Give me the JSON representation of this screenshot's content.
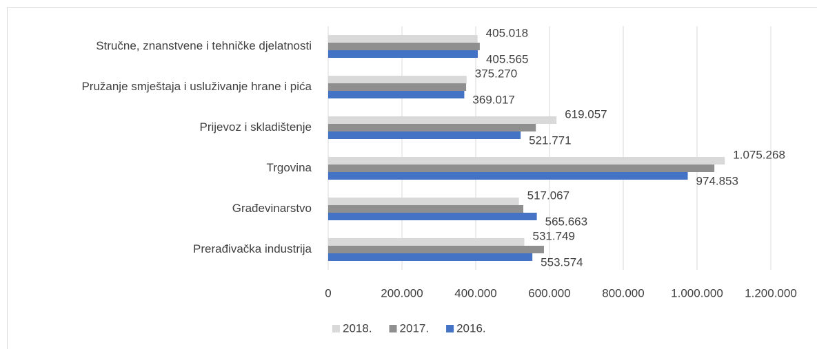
{
  "chart_data": {
    "type": "barh",
    "categories": [
      "Stručne, znanstvene i tehničke djelatnosti",
      "Pružanje smještaja i usluživanje hrane i pića",
      "Prijevoz i  skladištenje",
      "Trgovina",
      "Građevinarstvo",
      "Prerađivačka industrija"
    ],
    "series": [
      {
        "name": "2018.",
        "color": "#d9d9d9",
        "label_color": "#262626",
        "values": [
          405018,
          375270,
          619057,
          1075268,
          517067,
          531749
        ],
        "value_labels": [
          "405.018",
          "375.270",
          "619.057",
          "1.075.268",
          "517.067",
          "531.749"
        ]
      },
      {
        "name": "2017.",
        "color": "#8f8f8f",
        "values": [
          411000,
          374000,
          563000,
          1047000,
          529000,
          585000
        ]
      },
      {
        "name": "2016.",
        "color": "#4472c4",
        "label_color": "#2f5597",
        "values": [
          405565,
          369017,
          521771,
          974853,
          565663,
          553574
        ],
        "value_labels": [
          "405.565",
          "369.017",
          "521.771",
          "974.853",
          "565.663",
          "553.574"
        ]
      }
    ],
    "xlim": [
      0,
      1200000
    ],
    "xticks": [
      0,
      {
        "value": 200000,
        "label": "200.000"
      },
      {
        "value": 400000,
        "label": "400.000"
      },
      {
        "value": 600000,
        "label": "600.000"
      },
      {
        "value": 800000,
        "label": "800.000"
      },
      {
        "value": 1000000,
        "label": "1.000.000"
      },
      {
        "value": 1200000,
        "label": "1.200.000"
      }
    ],
    "grid": true,
    "legend": "bottom"
  }
}
